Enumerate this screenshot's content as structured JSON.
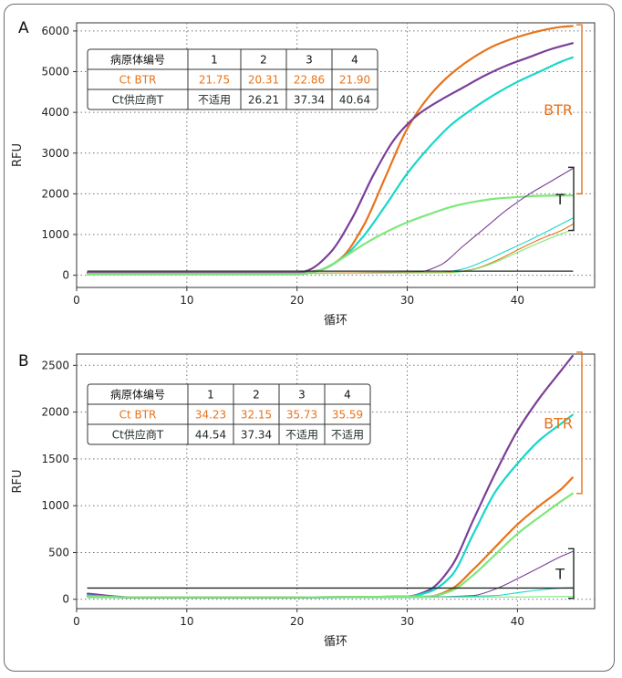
{
  "colors": {
    "orange": "#e8731a",
    "purple": "#7b3f98",
    "cyan": "#18d8c8",
    "green": "#7ee87a",
    "black": "#1f2a22",
    "grid": "#777777"
  },
  "chart_data": [
    {
      "type": "line",
      "panel_label": "A",
      "xlabel": "循环",
      "ylabel": "RFU",
      "xlim": [
        0,
        47
      ],
      "ylim": [
        -300,
        6200
      ],
      "xticks": [
        0,
        10,
        20,
        30,
        40
      ],
      "yticks": [
        0,
        1000,
        2000,
        3000,
        4000,
        5000,
        6000
      ],
      "grid": true,
      "series": [
        {
          "color": "orange",
          "role": "BTR",
          "x": [
            1,
            10,
            20,
            22,
            24,
            26,
            28,
            30,
            32,
            34,
            36,
            38,
            40,
            42,
            44,
            45
          ],
          "y": [
            60,
            60,
            60,
            120,
            420,
            1200,
            2400,
            3600,
            4400,
            4950,
            5350,
            5650,
            5850,
            6000,
            6100,
            6120
          ]
        },
        {
          "color": "purple",
          "role": "BTR",
          "x": [
            1,
            10,
            20,
            21,
            23,
            25,
            27,
            29,
            31,
            33,
            35,
            37,
            39,
            41,
            43,
            45
          ],
          "y": [
            60,
            60,
            60,
            120,
            550,
            1400,
            2500,
            3400,
            3950,
            4300,
            4600,
            4900,
            5150,
            5350,
            5550,
            5700
          ]
        },
        {
          "color": "cyan",
          "role": "BTR",
          "x": [
            1,
            10,
            20,
            22,
            24,
            26,
            28,
            30,
            32,
            34,
            36,
            38,
            40,
            42,
            44,
            45
          ],
          "y": [
            30,
            30,
            30,
            120,
            400,
            950,
            1700,
            2500,
            3150,
            3700,
            4100,
            4450,
            4750,
            5000,
            5250,
            5350
          ]
        },
        {
          "color": "green",
          "role": "BTR",
          "x": [
            1,
            10,
            20,
            22,
            24,
            26,
            28,
            30,
            32,
            34,
            36,
            38,
            40,
            42,
            45
          ],
          "y": [
            20,
            20,
            20,
            120,
            400,
            750,
            1050,
            1300,
            1500,
            1680,
            1800,
            1880,
            1920,
            1950,
            1960
          ]
        },
        {
          "color": "purple",
          "role": "T",
          "x": [
            1,
            20,
            31,
            33,
            35,
            37,
            39,
            41,
            43,
            45
          ],
          "y": [
            50,
            50,
            80,
            250,
            700,
            1150,
            1600,
            1980,
            2300,
            2620
          ]
        },
        {
          "color": "cyan",
          "role": "T",
          "x": [
            1,
            20,
            33,
            35,
            37,
            39,
            41,
            43,
            45
          ],
          "y": [
            50,
            50,
            70,
            150,
            350,
            600,
            850,
            1120,
            1400
          ]
        },
        {
          "color": "orange",
          "role": "T",
          "x": [
            1,
            20,
            34,
            36,
            38,
            40,
            42,
            44,
            45
          ],
          "y": [
            50,
            50,
            70,
            150,
            350,
            620,
            880,
            1100,
            1250
          ]
        },
        {
          "color": "green",
          "role": "T",
          "x": [
            1,
            20,
            34,
            36,
            38,
            40,
            42,
            44,
            45
          ],
          "y": [
            40,
            40,
            60,
            140,
            320,
            560,
            800,
            1020,
            1120
          ]
        },
        {
          "color": "black",
          "role": "threshold",
          "x": [
            1,
            45
          ],
          "y": [
            100,
            100
          ]
        }
      ],
      "brackets": [
        {
          "label": "BTR",
          "color": "orange",
          "y_top": 6150,
          "y_bottom": 2000
        },
        {
          "label": "T",
          "color": "black",
          "y_top": 2650,
          "y_bottom": 1100
        }
      ],
      "table": {
        "header": [
          "病原体编号",
          "1",
          "2",
          "3",
          "4"
        ],
        "rows": [
          {
            "label": "Ct BTR",
            "color": "orange",
            "values": [
              "21.75",
              "20.31",
              "22.86",
              "21.90"
            ]
          },
          {
            "label": "Ct供应商T",
            "color": "black",
            "values": [
              "不适用",
              "26.21",
              "37.34",
              "40.64"
            ]
          }
        ]
      }
    },
    {
      "type": "line",
      "panel_label": "B",
      "xlabel": "循环",
      "ylabel": "RFU",
      "xlim": [
        0,
        47
      ],
      "ylim": [
        -100,
        2620
      ],
      "xticks": [
        0,
        10,
        20,
        30,
        40
      ],
      "yticks": [
        0,
        500,
        1000,
        1500,
        2000,
        2500
      ],
      "grid": true,
      "series": [
        {
          "color": "purple",
          "role": "BTR",
          "x": [
            1,
            5,
            10,
            20,
            30,
            32,
            34,
            36,
            38,
            40,
            42,
            44,
            45
          ],
          "y": [
            60,
            20,
            20,
            20,
            30,
            100,
            350,
            850,
            1350,
            1800,
            2150,
            2450,
            2600
          ]
        },
        {
          "color": "cyan",
          "role": "BTR",
          "x": [
            1,
            5,
            10,
            20,
            30,
            32,
            34,
            36,
            38,
            40,
            42,
            44,
            45
          ],
          "y": [
            40,
            20,
            20,
            20,
            30,
            80,
            250,
            700,
            1150,
            1450,
            1700,
            1880,
            1970
          ]
        },
        {
          "color": "orange",
          "role": "BTR",
          "x": [
            1,
            5,
            10,
            20,
            32,
            34,
            36,
            38,
            40,
            42,
            44,
            45
          ],
          "y": [
            30,
            20,
            20,
            20,
            30,
            110,
            320,
            560,
            800,
            1000,
            1180,
            1300
          ]
        },
        {
          "color": "green",
          "role": "BTR",
          "x": [
            1,
            5,
            10,
            20,
            32,
            34,
            36,
            38,
            40,
            42,
            44,
            45
          ],
          "y": [
            30,
            20,
            20,
            20,
            30,
            90,
            260,
            480,
            700,
            880,
            1050,
            1130
          ]
        },
        {
          "color": "purple",
          "role": "T",
          "x": [
            1,
            10,
            20,
            30,
            36,
            38,
            40,
            42,
            44,
            45
          ],
          "y": [
            20,
            20,
            20,
            20,
            40,
            110,
            220,
            340,
            460,
            510
          ]
        },
        {
          "color": "cyan",
          "role": "T",
          "x": [
            1,
            10,
            20,
            30,
            38,
            40,
            42,
            44,
            45
          ],
          "y": [
            20,
            20,
            20,
            20,
            40,
            70,
            100,
            120,
            125
          ]
        },
        {
          "color": "green",
          "role": "T",
          "x": [
            1,
            10,
            20,
            30,
            40,
            45
          ],
          "y": [
            20,
            20,
            20,
            20,
            25,
            30
          ]
        },
        {
          "color": "black",
          "role": "threshold",
          "x": [
            1,
            45
          ],
          "y": [
            120,
            120
          ]
        }
      ],
      "brackets": [
        {
          "label": "BTR",
          "color": "orange",
          "y_top": 2640,
          "y_bottom": 1130
        },
        {
          "label": "T",
          "color": "black",
          "y_top": 540,
          "y_bottom": 10
        }
      ],
      "table": {
        "header": [
          "病原体编号",
          "1",
          "2",
          "3",
          "4"
        ],
        "rows": [
          {
            "label": "Ct BTR",
            "color": "orange",
            "values": [
              "34.23",
              "32.15",
              "35.73",
              "35.59"
            ]
          },
          {
            "label": "Ct供应商T",
            "color": "black",
            "values": [
              "44.54",
              "37.34",
              "不适用",
              "不适用"
            ]
          }
        ]
      }
    }
  ]
}
